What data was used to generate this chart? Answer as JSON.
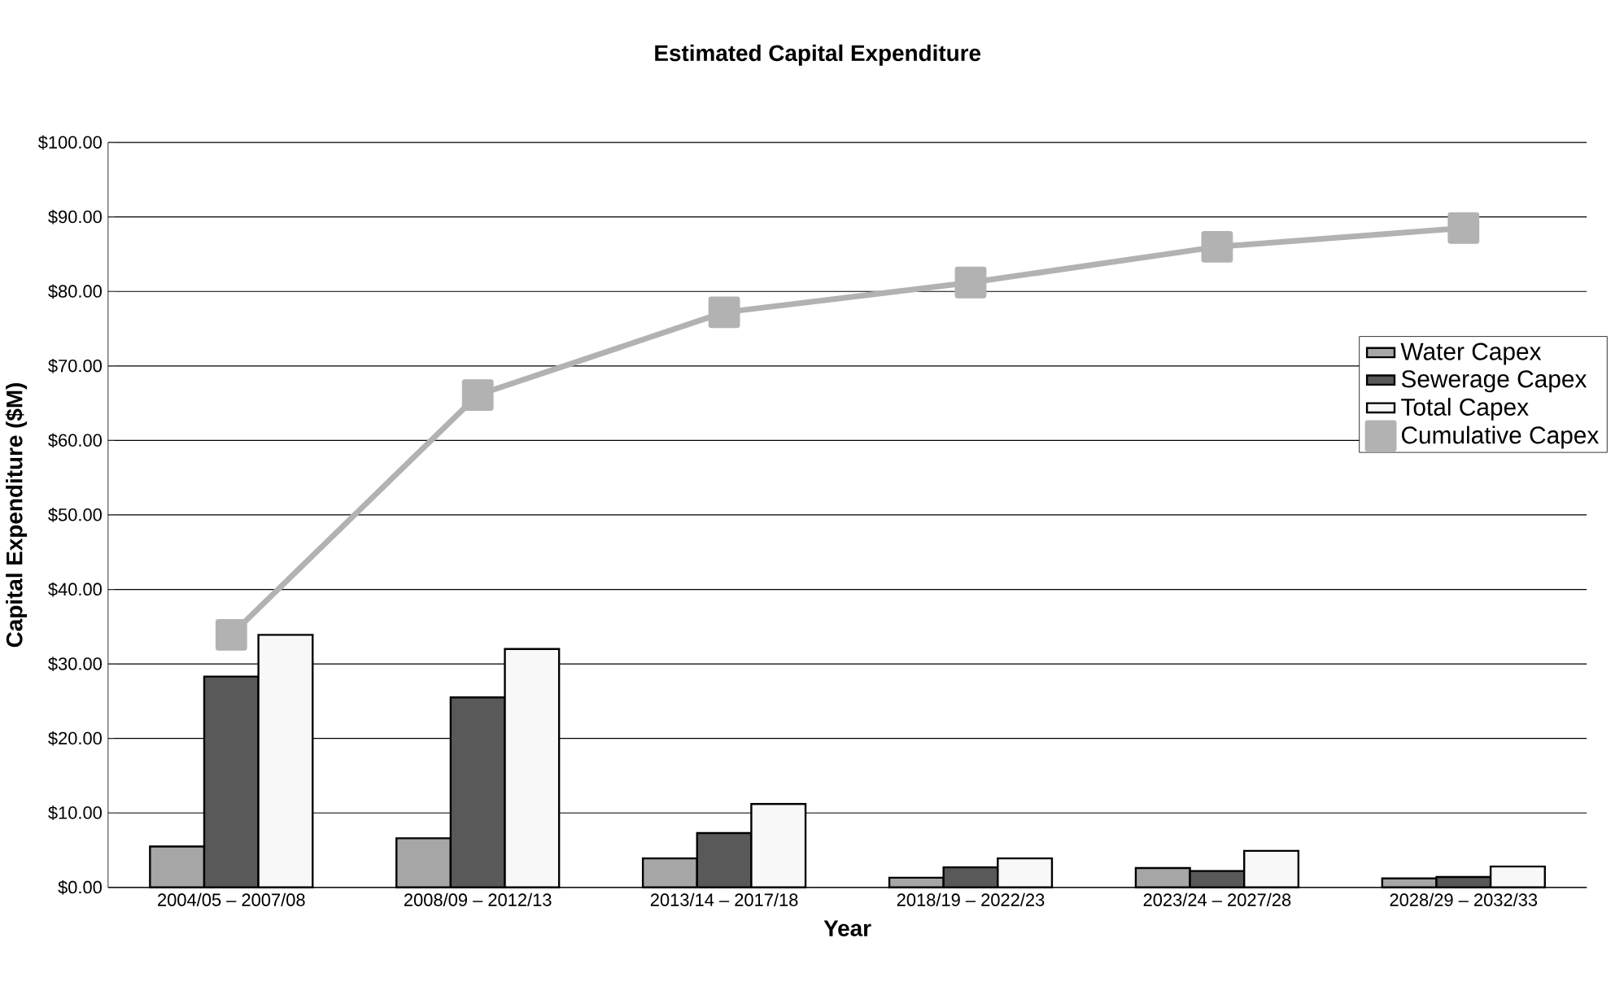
{
  "chart_data": {
    "type": "bar",
    "title": "Estimated Capital Expenditure",
    "xlabel": "Year",
    "ylabel": "Capital Expenditure ($M)",
    "categories": [
      "2004/05 – 2007/08",
      "2008/09 – 2012/13",
      "2013/14 – 2017/18",
      "2018/19 – 2022/23",
      "2023/24 – 2027/28",
      "2028/29 – 2032/33"
    ],
    "series": [
      {
        "name": "Water Capex",
        "color": "#a6a6a6",
        "values": [
          5.5,
          6.6,
          3.9,
          1.3,
          2.6,
          1.2
        ]
      },
      {
        "name": "Sewerage Capex",
        "color": "#595959",
        "values": [
          28.3,
          25.5,
          7.3,
          2.7,
          2.2,
          1.4
        ]
      },
      {
        "name": "Total Capex",
        "color": "#f8f8f8",
        "values": [
          33.9,
          32.0,
          11.2,
          3.9,
          4.9,
          2.8
        ]
      },
      {
        "name": "Cumulative Capex",
        "type": "line",
        "color": "#b2b2b2",
        "marker": "square",
        "values": [
          33.9,
          66.1,
          77.2,
          81.2,
          86.0,
          88.5
        ]
      }
    ],
    "ylim": [
      0,
      100
    ],
    "yticks": [
      {
        "value": 0,
        "label": "$0.00"
      },
      {
        "value": 10,
        "label": "$10.00"
      },
      {
        "value": 20,
        "label": "$20.00"
      },
      {
        "value": 30,
        "label": "$30.00"
      },
      {
        "value": 40,
        "label": "$40.00"
      },
      {
        "value": 50,
        "label": "$50.00"
      },
      {
        "value": 60,
        "label": "$60.00"
      },
      {
        "value": 70,
        "label": "$70.00"
      },
      {
        "value": 80,
        "label": "$80.00"
      },
      {
        "value": 90,
        "label": "$90.00"
      },
      {
        "value": 100,
        "label": "$100.00"
      }
    ],
    "grid": "y",
    "legend": "right"
  }
}
